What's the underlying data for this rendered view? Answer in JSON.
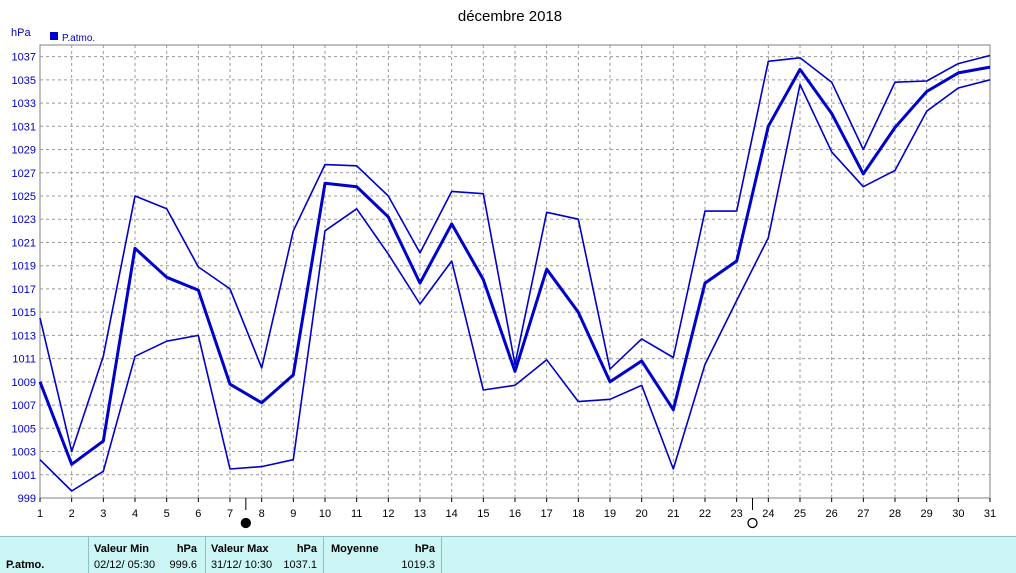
{
  "chart_data": {
    "type": "line",
    "title": "décembre 2018",
    "ylabel": "hPa",
    "ylim": [
      999,
      1038
    ],
    "y_ticks": [
      999,
      1001,
      1003,
      1005,
      1007,
      1009,
      1011,
      1013,
      1015,
      1017,
      1019,
      1021,
      1023,
      1025,
      1027,
      1029,
      1031,
      1033,
      1035,
      1037
    ],
    "categories": [
      "1",
      "2",
      "3",
      "4",
      "5",
      "6",
      "7",
      "8",
      "9",
      "10",
      "11",
      "12",
      "13",
      "14",
      "15",
      "16",
      "17",
      "18",
      "19",
      "20",
      "21",
      "22",
      "23",
      "24",
      "25",
      "26",
      "27",
      "28",
      "29",
      "30",
      "31"
    ],
    "legend": [
      "P.atmo."
    ],
    "grid": true,
    "series": [
      {
        "name": "P.atmo.",
        "role": "max",
        "values": [
          1014.5,
          1003.0,
          1011.2,
          1025.0,
          1023.9,
          1018.9,
          1017.0,
          1010.2,
          1022.0,
          1027.7,
          1027.6,
          1025.0,
          1020.1,
          1025.4,
          1025.2,
          1010.5,
          1023.6,
          1023.0,
          1010.1,
          1012.7,
          1011.1,
          1023.7,
          1023.7,
          1036.6,
          1036.9,
          1034.8,
          1029.0,
          1034.8,
          1034.9,
          1036.4,
          1037.1
        ]
      },
      {
        "name": "P.atmo.",
        "role": "mean",
        "values": [
          1009.0,
          1001.9,
          1003.9,
          1020.5,
          1018.0,
          1016.9,
          1008.8,
          1007.2,
          1009.6,
          1026.1,
          1025.8,
          1023.2,
          1017.5,
          1022.6,
          1017.8,
          1009.9,
          1018.7,
          1015.0,
          1009.0,
          1010.8,
          1006.6,
          1017.5,
          1019.4,
          1031.0,
          1035.9,
          1032.1,
          1026.9,
          1030.9,
          1034.0,
          1035.6,
          1036.1
        ]
      },
      {
        "name": "P.atmo.",
        "role": "min",
        "values": [
          1002.3,
          999.6,
          1001.3,
          1011.2,
          1012.5,
          1013.0,
          1001.5,
          1001.7,
          1002.3,
          1022.0,
          1023.9,
          1020.0,
          1015.7,
          1019.4,
          1008.3,
          1008.7,
          1010.9,
          1007.3,
          1007.5,
          1008.7,
          1001.5,
          1010.5,
          1016.0,
          1021.4,
          1034.6,
          1028.8,
          1025.8,
          1027.2,
          1032.3,
          1034.3,
          1035.0
        ]
      }
    ],
    "moon_phases": [
      {
        "day": 7,
        "phase": "new"
      },
      {
        "day": 23,
        "phase": "full"
      }
    ]
  },
  "colors": {
    "series": "#0000cc",
    "grid": "#999999",
    "stats_bg": "#ccf5f5"
  },
  "stats": {
    "name": "P.atmo.",
    "min_header": "Valeur Min",
    "min_unit": "hPa",
    "min_date": "02/12/  05:30",
    "min_value": "999.6",
    "max_header": "Valeur Max",
    "max_unit": "hPa",
    "max_date": "31/12/  10:30",
    "max_value": "1037.1",
    "avg_header": "Moyenne",
    "avg_unit": "hPa",
    "avg_value": "1019.3"
  }
}
